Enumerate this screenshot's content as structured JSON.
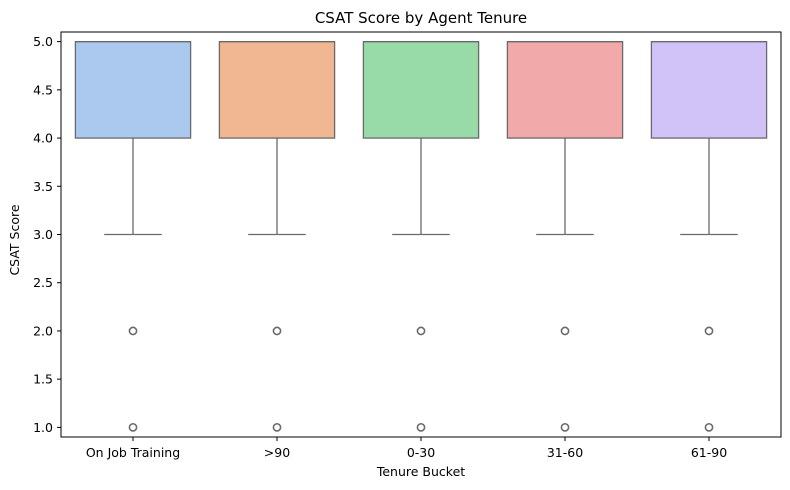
{
  "chart_data": {
    "type": "boxplot",
    "title": "CSAT Score by Agent Tenure",
    "xlabel": "Tenure Bucket",
    "ylabel": "CSAT Score",
    "ylim": [
      0.9,
      5.1
    ],
    "yticks": [
      "1.0",
      "1.5",
      "2.0",
      "2.5",
      "3.0",
      "3.5",
      "4.0",
      "4.5",
      "5.0"
    ],
    "grid": false,
    "categories": [
      "On Job Training",
      ">90",
      "0-30",
      "31-60",
      "61-90"
    ],
    "boxes": [
      {
        "category": "On Job Training",
        "whisker_low": 3.0,
        "q1": 4.0,
        "median": 5.0,
        "q3": 5.0,
        "whisker_high": 5.0,
        "outliers": [
          2.0,
          1.0
        ],
        "color": "#abc9ee"
      },
      {
        "category": ">90",
        "whisker_low": 3.0,
        "q1": 4.0,
        "median": 5.0,
        "q3": 5.0,
        "whisker_high": 5.0,
        "outliers": [
          2.0,
          1.0
        ],
        "color": "#f1b792"
      },
      {
        "category": "0-30",
        "whisker_low": 3.0,
        "q1": 4.0,
        "median": 5.0,
        "q3": 5.0,
        "whisker_high": 5.0,
        "outliers": [
          2.0,
          1.0
        ],
        "color": "#99dba8"
      },
      {
        "category": "31-60",
        "whisker_low": 3.0,
        "q1": 4.0,
        "median": 5.0,
        "q3": 5.0,
        "whisker_high": 5.0,
        "outliers": [
          2.0,
          1.0
        ],
        "color": "#f2a9a9"
      },
      {
        "category": "61-90",
        "whisker_low": 3.0,
        "q1": 4.0,
        "median": 5.0,
        "q3": 5.0,
        "whisker_high": 5.0,
        "outliers": [
          2.0,
          1.0
        ],
        "color": "#d1c3f8"
      }
    ],
    "line_color": "#6a6a6a"
  }
}
